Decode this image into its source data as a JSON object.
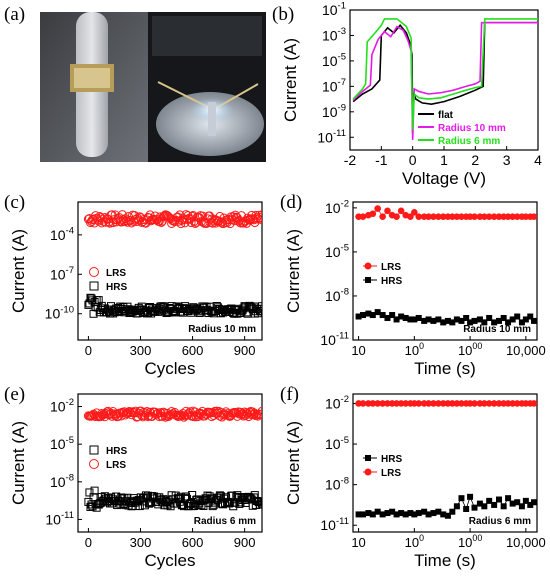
{
  "panels": {
    "a": {
      "label": "(a)"
    },
    "b": {
      "label": "(b)"
    },
    "c": {
      "label": "(c)"
    },
    "d": {
      "label": "(d)"
    },
    "e": {
      "label": "(e)"
    },
    "f": {
      "label": "(f)"
    }
  },
  "colors": {
    "red": "#ff1a1a",
    "black": "#000000",
    "green": "#22e01a",
    "magenta": "#e61ae6",
    "photo_dark": "#15171a",
    "photo_gray": "#9aa0a8",
    "glow": "#bfe6ff"
  },
  "chart_data": [
    {
      "id": "b",
      "type": "line",
      "xlabel": "Voltage (V)",
      "ylabel": "Current (A)",
      "xlim": [
        -2,
        4
      ],
      "xticks": [
        "-2",
        "-1",
        "0",
        "1",
        "2",
        "3",
        "4"
      ],
      "yscale": "log",
      "ylim": [
        -12,
        -1
      ],
      "yticks": [
        "10-1",
        "10-3",
        "10-5",
        "10-7",
        "10-9",
        "10-11"
      ],
      "legend_position": "bottom-right",
      "series": [
        {
          "name": "flat",
          "color": "#000000",
          "x": [
            -1.9,
            -1.6,
            -1.3,
            -1.05,
            -1.0,
            -0.8,
            -0.6,
            -0.4,
            -0.2,
            -0.1,
            -0.02,
            0.0,
            0.02,
            0.1,
            0.3,
            0.6,
            1.0,
            1.5,
            2.0,
            2.25,
            2.3,
            2.35,
            3.0,
            4.0
          ],
          "y": [
            -8.2,
            -7.6,
            -7.2,
            -6.5,
            -3.0,
            -2.4,
            -2.8,
            -2.2,
            -2.8,
            -3.5,
            -4.5,
            -10.6,
            -7.5,
            -8.0,
            -8.3,
            -8.4,
            -8.2,
            -7.8,
            -7.3,
            -7.0,
            -2.0,
            -2.0,
            -2.0,
            -2.0
          ]
        },
        {
          "name": "Radius 10 mm",
          "color": "#e61ae6",
          "x": [
            -1.9,
            -1.6,
            -1.35,
            -1.3,
            -1.1,
            -0.9,
            -0.7,
            -0.5,
            -0.3,
            -0.15,
            -0.05,
            0.0,
            0.05,
            0.2,
            0.5,
            0.9,
            1.3,
            1.7,
            2.0,
            2.15,
            2.2,
            2.25,
            3.0,
            4.0
          ],
          "y": [
            -8.1,
            -7.4,
            -6.9,
            -4.5,
            -3.3,
            -2.7,
            -3.1,
            -2.3,
            -2.6,
            -3.4,
            -4.2,
            -11.2,
            -7.2,
            -7.4,
            -7.6,
            -7.5,
            -7.3,
            -7.0,
            -6.8,
            -6.6,
            -2.0,
            -2.0,
            -2.0,
            -2.0
          ]
        },
        {
          "name": "Radius 6 mm",
          "color": "#22e01a",
          "x": [
            -1.9,
            -1.6,
            -1.5,
            -1.45,
            -1.2,
            -1.0,
            -0.9,
            -0.5,
            -0.2,
            -0.05,
            0.0,
            0.05,
            0.2,
            0.5,
            0.9,
            1.3,
            1.7,
            2.0,
            2.2,
            2.3,
            3.0,
            4.0
          ],
          "y": [
            -8.0,
            -7.2,
            -6.8,
            -3.5,
            -2.8,
            -2.2,
            -1.7,
            -1.7,
            -2.3,
            -3.2,
            -10.4,
            -7.6,
            -7.9,
            -8.0,
            -7.9,
            -7.6,
            -7.3,
            -7.1,
            -7.0,
            -1.7,
            -1.7,
            -1.7
          ]
        }
      ]
    },
    {
      "id": "c",
      "type": "scatter",
      "xlabel": "Cycles",
      "ylabel": "Current (A)",
      "xlim": [
        -60,
        1000
      ],
      "xticks": [
        "0",
        "300",
        "600",
        "900"
      ],
      "yscale": "log",
      "ylim": [
        -12,
        -1.5
      ],
      "yticks": [
        "10-4",
        "10-7",
        "10-10"
      ],
      "annotation": "Radius 10 mm",
      "legend_position": "left",
      "series": [
        {
          "name": "LRS",
          "color": "#ff1a1a",
          "marker": "open-circle",
          "x_range": [
            0,
            1000
          ],
          "log_mean": -2.8,
          "log_spread": 0.35
        },
        {
          "name": "HRS",
          "color": "#000000",
          "marker": "open-square",
          "x_range": [
            0,
            1000
          ],
          "log_mean": -9.7,
          "log_spread": 0.3
        }
      ]
    },
    {
      "id": "d",
      "type": "scatter",
      "xlabel": "Time (s)",
      "ylabel": "Current (A)",
      "xscale": "log",
      "xlim": [
        0.9,
        4.2
      ],
      "xticks": [
        "10",
        "100",
        "1000",
        "10,000"
      ],
      "yscale": "log",
      "ylim": [
        -11,
        -1.6
      ],
      "yticks": [
        "10-2",
        "10-5",
        "10-8",
        "10-11"
      ],
      "annotation": "Radius 10 mm",
      "legend_position": "left",
      "series": [
        {
          "name": "LRS",
          "color": "#ff1a1a",
          "marker": "filled-circle",
          "x": [
            10,
            12,
            15,
            18,
            22,
            27,
            33,
            40,
            48,
            58,
            70,
            85,
            100,
            120,
            150,
            180,
            220,
            270,
            330,
            400,
            480,
            580,
            700,
            850,
            1000,
            1200,
            1500,
            1800,
            2200,
            2700,
            3300,
            4000,
            4800,
            5800,
            7000,
            8500,
            10000,
            12000,
            14000
          ],
          "y": [
            -2.6,
            -2.6,
            -2.5,
            -2.4,
            -2.05,
            -2.6,
            -2.2,
            -2.5,
            -2.6,
            -2.2,
            -2.5,
            -2.6,
            -2.3,
            -2.6,
            -2.6,
            -2.6,
            -2.6,
            -2.6,
            -2.6,
            -2.6,
            -2.6,
            -2.6,
            -2.6,
            -2.6,
            -2.6,
            -2.6,
            -2.6,
            -2.6,
            -2.6,
            -2.6,
            -2.6,
            -2.6,
            -2.6,
            -2.6,
            -2.6,
            -2.6,
            -2.6,
            -2.6,
            -2.6
          ]
        },
        {
          "name": "HRS",
          "color": "#000000",
          "marker": "filled-square",
          "x": [
            10,
            12,
            15,
            18,
            22,
            27,
            33,
            40,
            48,
            58,
            70,
            85,
            100,
            120,
            150,
            180,
            220,
            270,
            330,
            400,
            480,
            580,
            700,
            850,
            1000,
            1200,
            1500,
            1800,
            2200,
            2700,
            3300,
            4000,
            4800,
            5800,
            7000,
            8500,
            10000,
            12000,
            14000
          ],
          "y": [
            -9.4,
            -9.3,
            -9.2,
            -9.3,
            -9.1,
            -9.3,
            -9.5,
            -9.3,
            -9.6,
            -9.4,
            -9.5,
            -9.6,
            -9.6,
            -9.5,
            -9.7,
            -9.6,
            -9.7,
            -9.6,
            -9.8,
            -9.7,
            -9.8,
            -9.6,
            -9.7,
            -9.5,
            -9.8,
            -9.7,
            -9.6,
            -9.8,
            -9.5,
            -9.8,
            -9.7,
            -9.5,
            -9.8,
            -9.6,
            -9.4,
            -9.8,
            -9.6,
            -9.4,
            -9.7
          ]
        }
      ]
    },
    {
      "id": "e",
      "type": "scatter",
      "xlabel": "Cycles",
      "ylabel": "Current (A)",
      "xlim": [
        -60,
        1000
      ],
      "xticks": [
        "0",
        "300",
        "600",
        "900"
      ],
      "yscale": "log",
      "ylim": [
        -12,
        -1
      ],
      "yticks": [
        "10-2",
        "10-5",
        "10-8",
        "10-11"
      ],
      "annotation": "Radius 6 mm",
      "legend_position": "left",
      "series": [
        {
          "name": "HRS",
          "color": "#000000",
          "marker": "open-square",
          "x_range": [
            0,
            1000
          ],
          "log_mean": -9.5,
          "log_spread": 0.45
        },
        {
          "name": "LRS",
          "color": "#ff1a1a",
          "marker": "open-circle",
          "x_range": [
            0,
            1000
          ],
          "log_mean": -2.6,
          "log_spread": 0.25
        }
      ]
    },
    {
      "id": "f",
      "type": "scatter",
      "xlabel": "Time (s)",
      "ylabel": "Current (A)",
      "xscale": "log",
      "xlim": [
        0.9,
        4.2
      ],
      "xticks": [
        "10",
        "100",
        "1000",
        "10,000"
      ],
      "yscale": "log",
      "ylim": [
        -11.5,
        -1.3
      ],
      "yticks": [
        "10-2",
        "10-5",
        "10-8",
        "10-11"
      ],
      "annotation": "Radius 6 mm",
      "legend_position": "left",
      "series": [
        {
          "name": "HRS",
          "color": "#000000",
          "marker": "filled-square",
          "x": [
            10,
            12,
            15,
            18,
            22,
            27,
            33,
            40,
            48,
            58,
            70,
            85,
            100,
            120,
            150,
            180,
            220,
            270,
            330,
            400,
            480,
            580,
            700,
            850,
            1000,
            1200,
            1500,
            1800,
            2200,
            2700,
            3300,
            4000,
            4800,
            5800,
            7000,
            8500,
            10000,
            12000,
            14000
          ],
          "y": [
            -10.2,
            -10.2,
            -10.1,
            -10.2,
            -10.0,
            -10.2,
            -10.1,
            -10.0,
            -10.2,
            -10.1,
            -10.2,
            -10.1,
            -10.2,
            -10.1,
            -10.0,
            -10.2,
            -10.1,
            -10.0,
            -10.2,
            -10.3,
            -10.0,
            -9.6,
            -9.0,
            -9.8,
            -8.9,
            -9.7,
            -9.4,
            -9.6,
            -9.2,
            -9.5,
            -9.1,
            -9.6,
            -9.0,
            -9.4,
            -9.3,
            -9.6,
            -9.2,
            -9.5,
            -9.3
          ]
        },
        {
          "name": "LRS",
          "color": "#ff1a1a",
          "marker": "filled-circle",
          "x": [
            10,
            12,
            15,
            18,
            22,
            27,
            33,
            40,
            48,
            58,
            70,
            85,
            100,
            120,
            150,
            180,
            220,
            270,
            330,
            400,
            480,
            580,
            700,
            850,
            1000,
            1200,
            1500,
            1800,
            2200,
            2700,
            3300,
            4000,
            4800,
            5800,
            7000,
            8500,
            10000,
            12000,
            14000
          ],
          "y": [
            -2.0,
            -2.0,
            -2.0,
            -2.0,
            -2.0,
            -2.0,
            -2.0,
            -2.0,
            -2.0,
            -2.0,
            -2.0,
            -2.0,
            -2.0,
            -2.0,
            -2.0,
            -2.0,
            -2.0,
            -2.0,
            -2.0,
            -2.0,
            -2.0,
            -2.0,
            -2.0,
            -2.0,
            -2.0,
            -2.0,
            -2.0,
            -2.0,
            -2.0,
            -2.0,
            -2.0,
            -2.0,
            -2.0,
            -2.0,
            -2.0,
            -2.0,
            -2.0,
            -2.0,
            -2.0
          ]
        }
      ]
    }
  ]
}
